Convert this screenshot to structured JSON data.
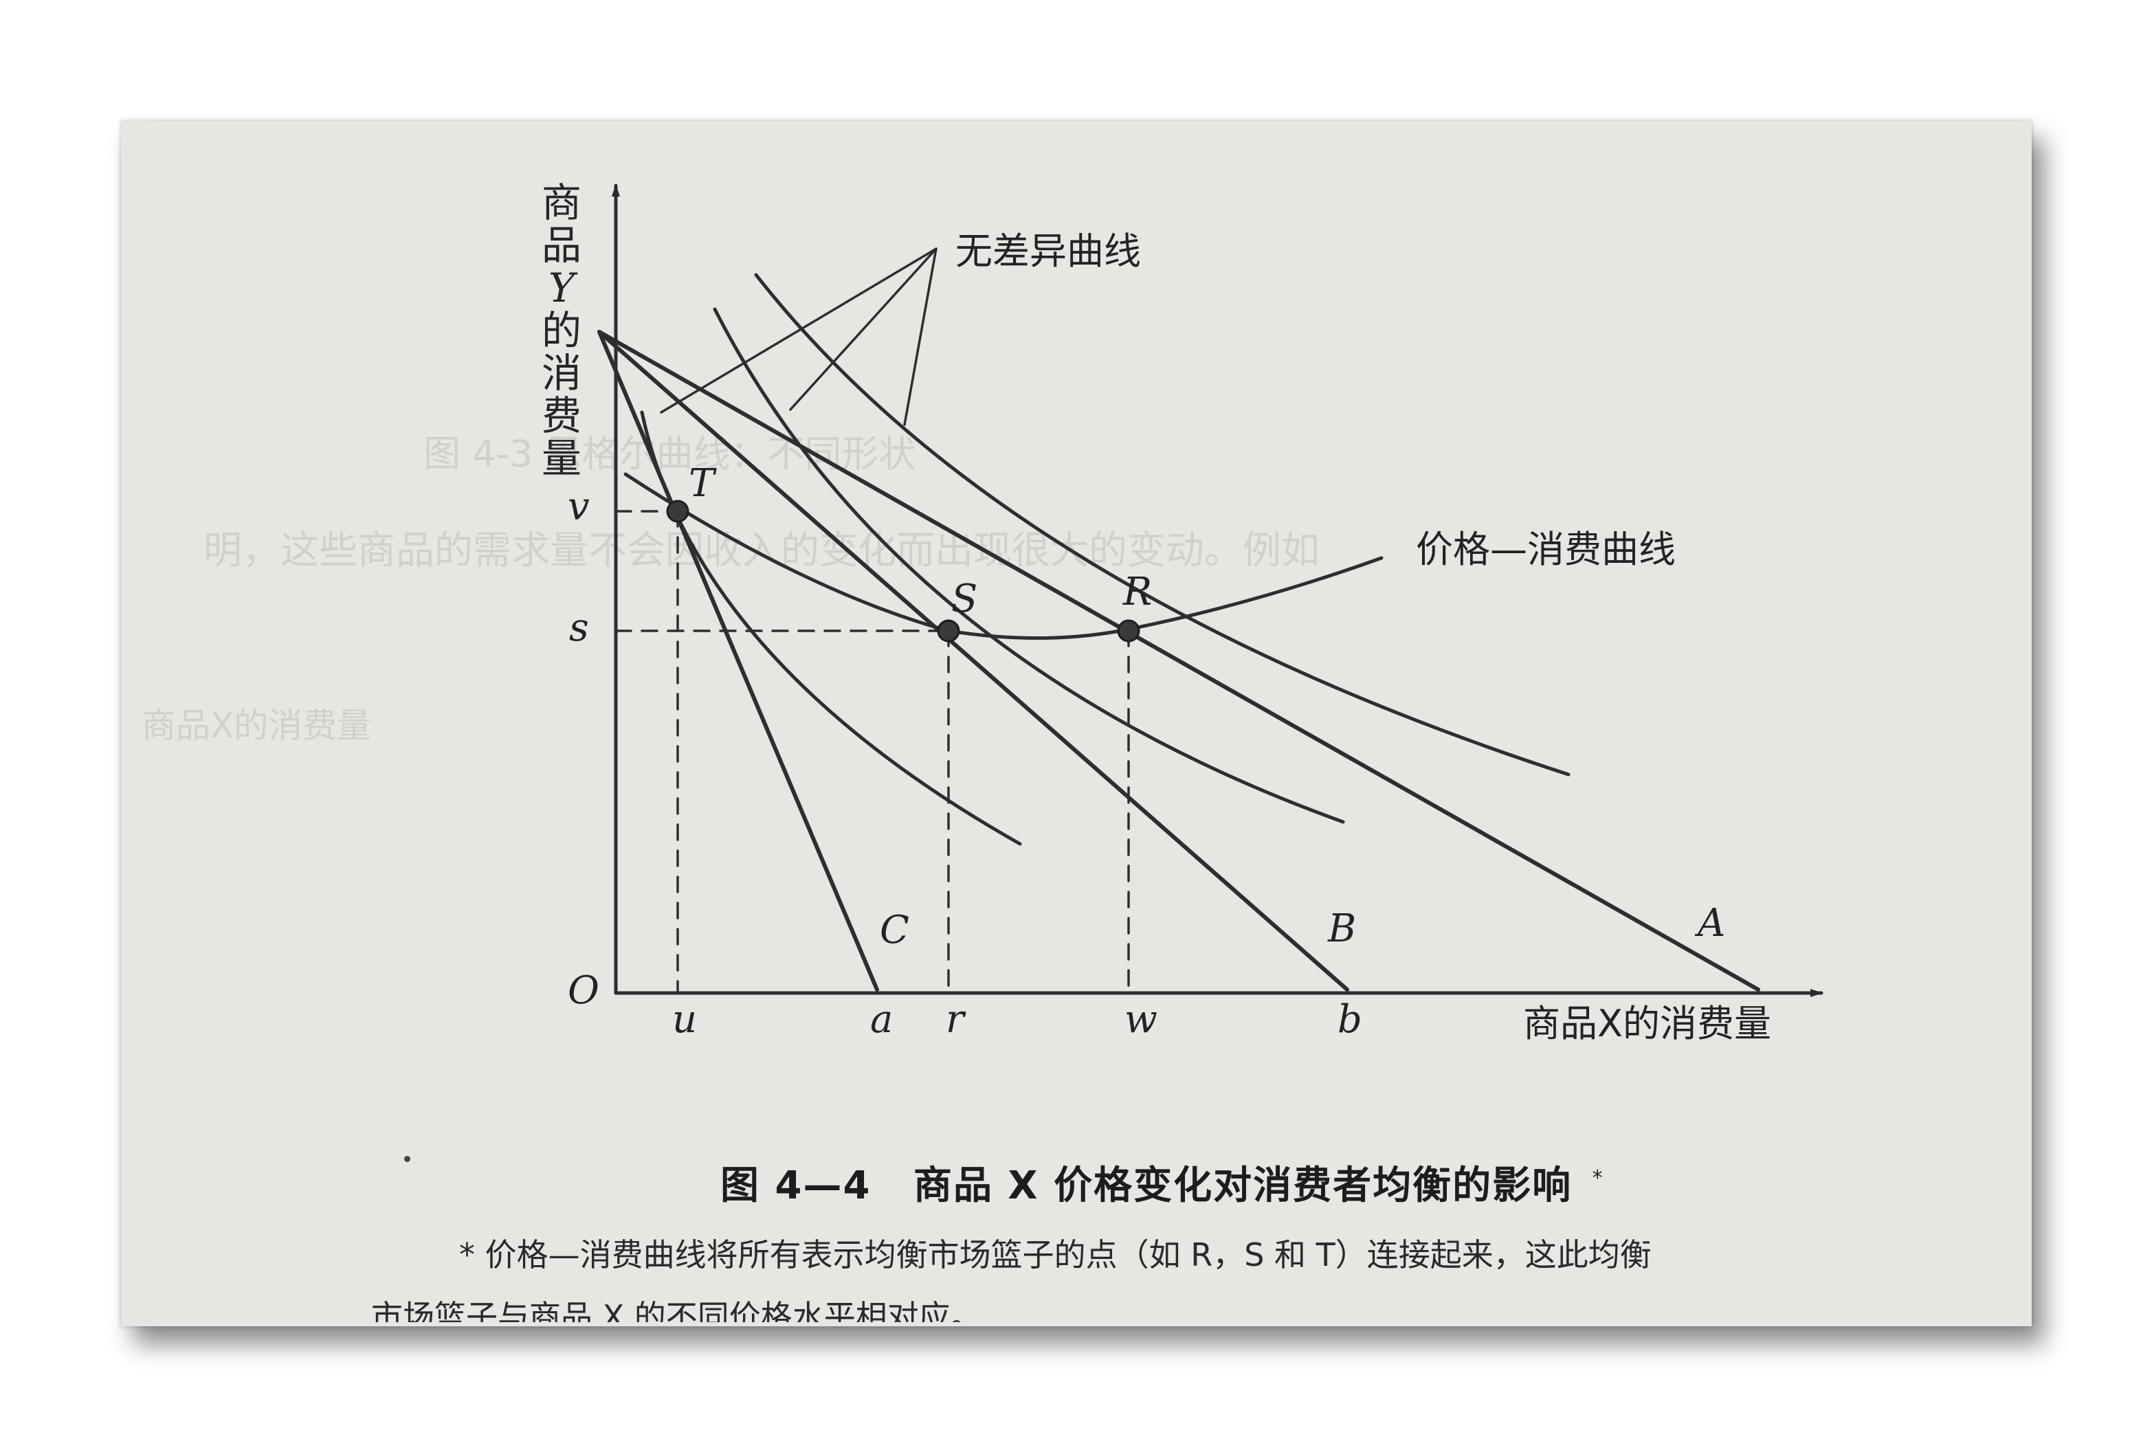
{
  "figure": {
    "y_axis_label_chars": [
      "商",
      "品",
      "Y",
      "的",
      "消",
      "费",
      "量"
    ],
    "x_axis_label": "商品X的消费量",
    "origin_label": "O",
    "indifference_label": "无差异曲线",
    "pcc_label": "价格—消费曲线",
    "point_labels": {
      "T": "T",
      "S": "S",
      "R": "R"
    },
    "y_ticks": {
      "v": "v",
      "s": "s"
    },
    "x_ticks": {
      "u": "u",
      "a": "a",
      "r": "r",
      "w": "w",
      "b": "b"
    },
    "budget_labels": {
      "C": "C",
      "B": "B",
      "A": "A"
    }
  },
  "caption": {
    "prefix": "图 4—4",
    "title": "商品 X 价格变化对消费者均衡的影响",
    "star": "*"
  },
  "footnote": {
    "line1": "* 价格—消费曲线将所有表示均衡市场篮子的点（如 R，S 和 T）连接起来，这此均衡",
    "line2": "市场篮子与商品 X 的不同价格水平相对应。"
  },
  "bleed_through": {
    "lines": [
      "图 4-3  恩格尔曲线：不同形状",
      "明，这些商品的需求量不会因收入的变化而出现很大的变动。例如",
      "商品X的消费量"
    ]
  }
}
